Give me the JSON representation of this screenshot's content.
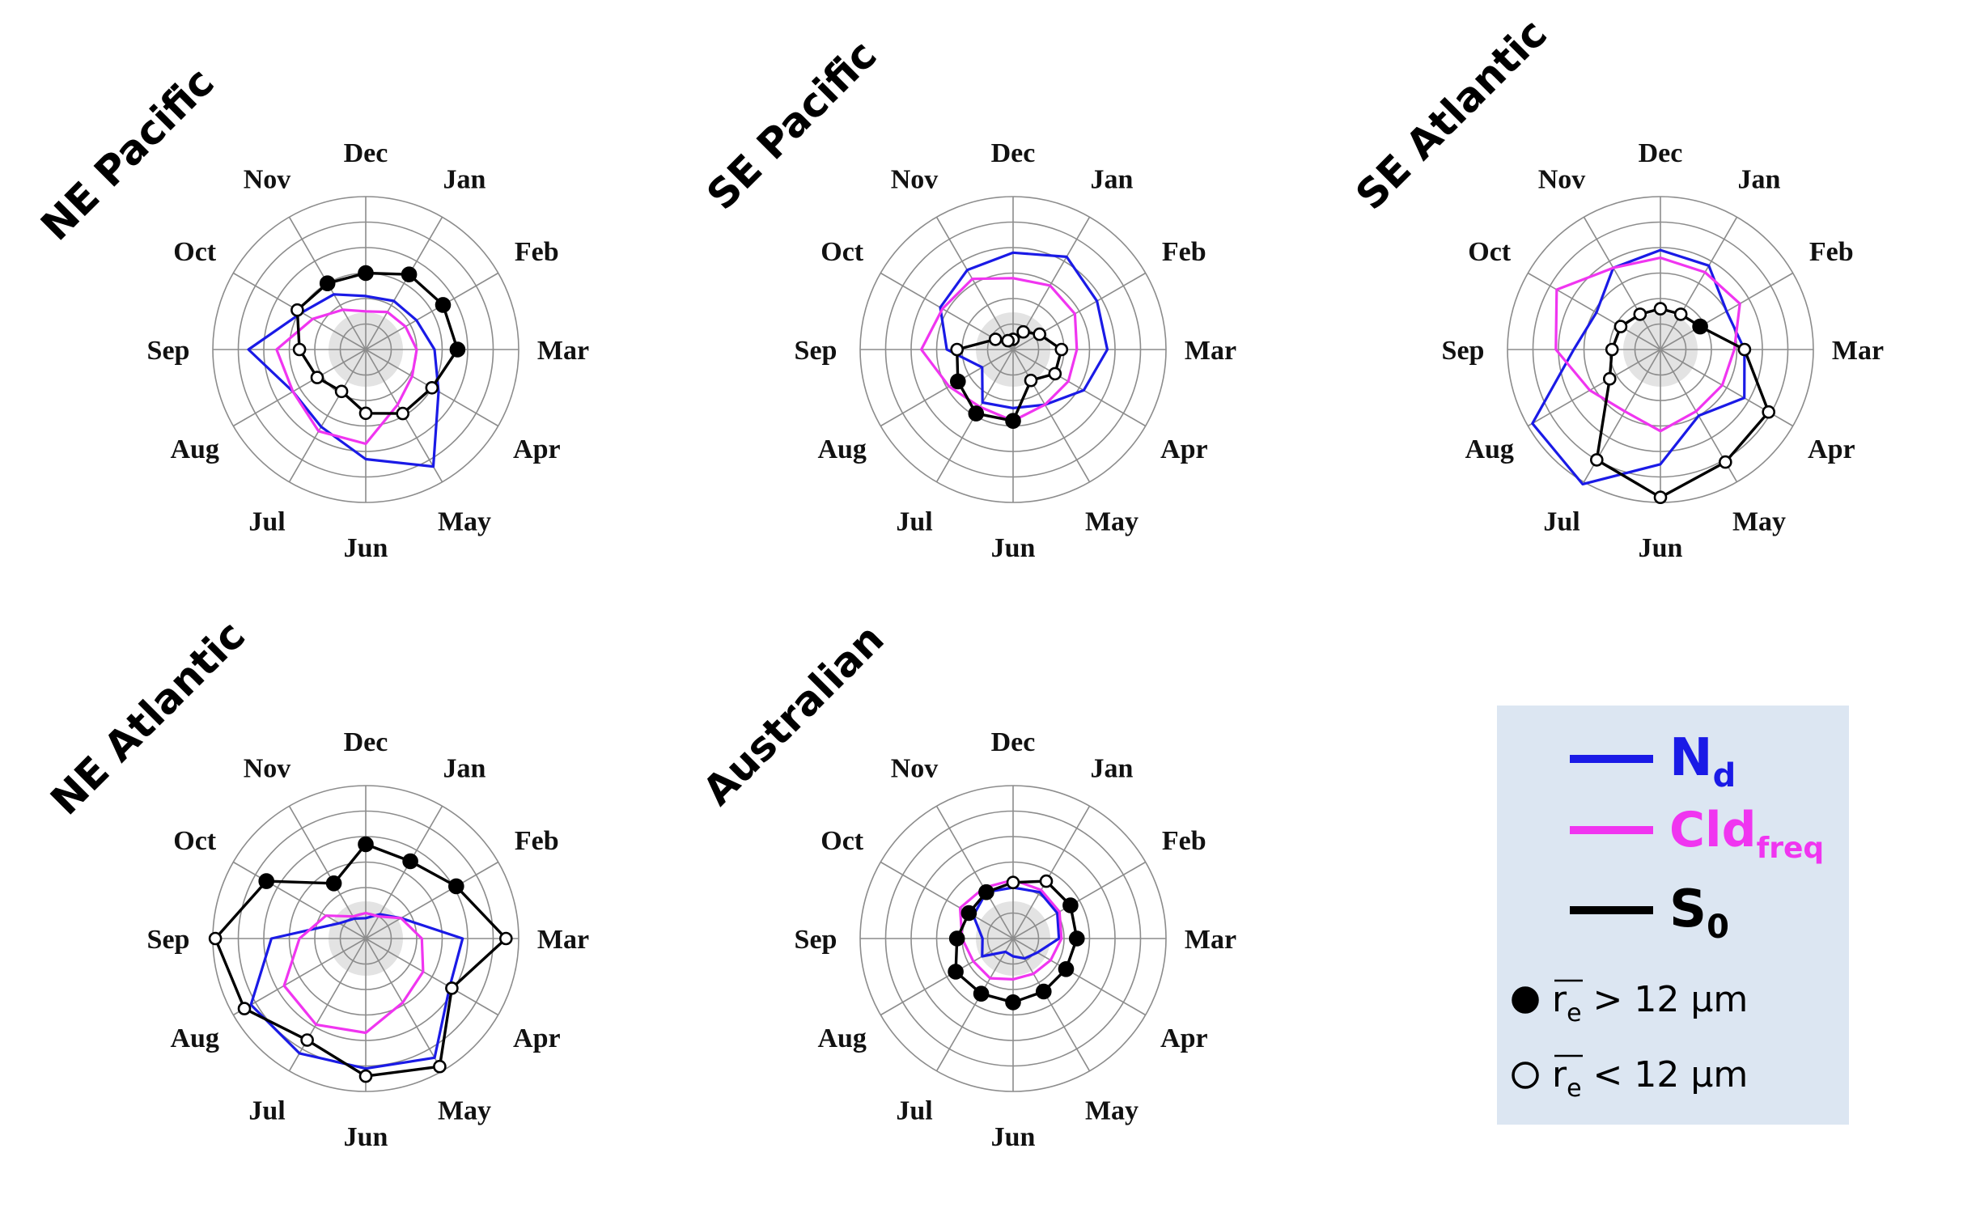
{
  "colors": {
    "nd": "#1a1ae6",
    "cld": "#f035f0",
    "s0": "#000000",
    "grid": "#8c8c8c",
    "legend_bg": "#dce6f2",
    "center_fill": "#e3e3e3"
  },
  "months": [
    "Dec",
    "Jan",
    "Feb",
    "Mar",
    "Apr",
    "May",
    "Jun",
    "Jul",
    "Aug",
    "Sep",
    "Oct",
    "Nov"
  ],
  "legend": {
    "nd_main": "N",
    "nd_sub": "d",
    "cld_main": "Cld",
    "cld_sub": "freq",
    "s0_main": "S",
    "s0_sub": "0",
    "filled_re": "r",
    "filled_sub": "e",
    "filled_text": " > 12 µm",
    "open_re": "r",
    "open_sub": "e",
    "open_text": " < 12 µm"
  },
  "chart_data": [
    {
      "type": "radar",
      "title": "NE Pacific",
      "rlim": [
        0,
        6
      ],
      "categories": [
        "Dec",
        "Jan",
        "Feb",
        "Mar",
        "Apr",
        "May",
        "Jun",
        "Jul",
        "Aug",
        "Sep",
        "Oct",
        "Nov"
      ],
      "series": [
        {
          "name": "Nd",
          "values": [
            2.1,
            2.2,
            2.3,
            2.7,
            3.3,
            5.3,
            4.3,
            3.5,
            3.3,
            4.6,
            2.9,
            2.5
          ]
        },
        {
          "name": "Cldfreq",
          "values": [
            1.5,
            1.7,
            1.8,
            2.0,
            2.1,
            2.5,
            3.7,
            3.7,
            3.3,
            3.5,
            2.4,
            1.8
          ]
        },
        {
          "name": "S0",
          "values": [
            3.0,
            3.4,
            3.5,
            3.6,
            3.0,
            2.9,
            2.5,
            1.9,
            2.2,
            2.6,
            3.1,
            3.0
          ],
          "re_gt_12um": [
            true,
            true,
            true,
            true,
            false,
            false,
            false,
            false,
            false,
            false,
            false,
            true
          ]
        }
      ]
    },
    {
      "type": "radar",
      "title": "SE Pacific",
      "rlim": [
        0,
        6
      ],
      "categories": [
        "Dec",
        "Jan",
        "Feb",
        "Mar",
        "Apr",
        "May",
        "Jun",
        "Jul",
        "Aug",
        "Sep",
        "Oct",
        "Nov"
      ],
      "series": [
        {
          "name": "Nd",
          "values": [
            3.8,
            4.2,
            3.8,
            3.7,
            3.2,
            2.5,
            2.3,
            2.4,
            1.4,
            2.6,
            3.3,
            3.6
          ]
        },
        {
          "name": "Cldfreq",
          "values": [
            2.8,
            2.9,
            2.8,
            2.5,
            2.5,
            2.5,
            2.8,
            2.6,
            2.9,
            3.6,
            3.2,
            3.2
          ]
        },
        {
          "name": "S0",
          "values": [
            0.4,
            0.8,
            1.2,
            1.9,
            1.9,
            1.4,
            2.8,
            2.9,
            2.5,
            2.2,
            0.8,
            0.4
          ],
          "re_gt_12um": [
            false,
            false,
            false,
            false,
            false,
            false,
            true,
            true,
            true,
            false,
            false,
            false
          ]
        }
      ]
    },
    {
      "type": "radar",
      "title": "SE Atlantic",
      "rlim": [
        0,
        6
      ],
      "categories": [
        "Dec",
        "Jan",
        "Feb",
        "Mar",
        "Apr",
        "May",
        "Jun",
        "Jul",
        "Aug",
        "Sep",
        "Oct",
        "Nov"
      ],
      "series": [
        {
          "name": "Nd",
          "values": [
            3.9,
            3.8,
            3.0,
            3.3,
            3.8,
            3.0,
            4.5,
            6.1,
            5.8,
            3.4,
            2.9,
            3.7
          ]
        },
        {
          "name": "Cldfreq",
          "values": [
            3.6,
            3.5,
            3.6,
            2.9,
            2.8,
            2.8,
            3.2,
            2.8,
            3.2,
            4.1,
            4.7,
            3.7
          ]
        },
        {
          "name": "S0",
          "values": [
            1.6,
            1.6,
            1.8,
            3.3,
            4.9,
            5.1,
            5.8,
            5.0,
            2.3,
            1.9,
            1.8,
            1.6
          ],
          "re_gt_12um": [
            false,
            false,
            true,
            false,
            false,
            false,
            false,
            false,
            false,
            false,
            false,
            false
          ]
        }
      ]
    },
    {
      "type": "radar",
      "title": "NE Atlantic",
      "rlim": [
        0,
        6
      ],
      "categories": [
        "Dec",
        "Jan",
        "Feb",
        "Mar",
        "Apr",
        "May",
        "Jun",
        "Jul",
        "Aug",
        "Sep",
        "Oct",
        "Nov"
      ],
      "series": [
        {
          "name": "Nd",
          "values": [
            0.8,
            1.1,
            1.6,
            3.8,
            3.8,
            5.4,
            5.1,
            5.2,
            5.2,
            3.7,
            1.2,
            0.9
          ]
        },
        {
          "name": "Cldfreq",
          "values": [
            1.0,
            1.0,
            1.6,
            2.2,
            2.6,
            2.9,
            3.7,
            3.9,
            3.7,
            2.6,
            1.8,
            1.0
          ]
        },
        {
          "name": "S0",
          "values": [
            3.7,
            3.5,
            4.1,
            5.5,
            3.9,
            5.8,
            5.4,
            4.6,
            5.5,
            5.9,
            4.5,
            2.5
          ],
          "re_gt_12um": [
            true,
            true,
            true,
            false,
            false,
            false,
            false,
            false,
            false,
            false,
            true,
            true
          ]
        }
      ]
    },
    {
      "type": "radar",
      "title": "Australian",
      "rlim": [
        0,
        6
      ],
      "categories": [
        "Dec",
        "Jan",
        "Feb",
        "Mar",
        "Apr",
        "May",
        "Jun",
        "Jul",
        "Aug",
        "Sep",
        "Oct",
        "Nov"
      ],
      "series": [
        {
          "name": "Nd",
          "values": [
            2.0,
            2.1,
            2.0,
            1.8,
            1.1,
            0.9,
            0.7,
            0.6,
            1.4,
            1.2,
            1.8,
            2.1
          ]
        },
        {
          "name": "Cldfreq",
          "values": [
            2.3,
            2.2,
            2.1,
            1.9,
            1.7,
            1.6,
            1.6,
            1.8,
            1.8,
            2.0,
            2.4,
            2.3
          ]
        },
        {
          "name": "S0",
          "values": [
            2.2,
            2.6,
            2.6,
            2.5,
            2.4,
            2.4,
            2.5,
            2.5,
            2.6,
            2.2,
            2.0,
            2.1
          ],
          "re_gt_12um": [
            false,
            false,
            true,
            true,
            true,
            true,
            true,
            true,
            true,
            true,
            true,
            true
          ]
        }
      ]
    }
  ]
}
